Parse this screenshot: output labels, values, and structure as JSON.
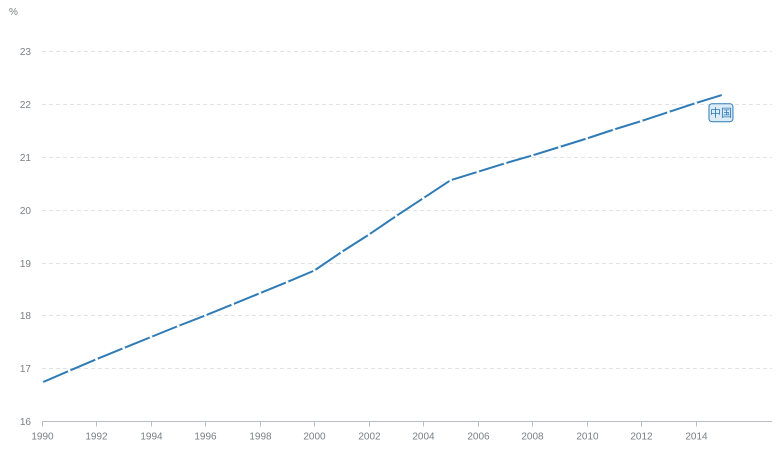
{
  "chart_data": {
    "type": "line",
    "unit_label": "%",
    "x": [
      1990,
      1991,
      1992,
      1993,
      1994,
      1995,
      1996,
      1997,
      1998,
      1999,
      2000,
      2001,
      2002,
      2003,
      2004,
      2005,
      2006,
      2007,
      2008,
      2009,
      2010,
      2011,
      2012,
      2013,
      2014,
      2015
    ],
    "xticks": [
      "1990",
      "1992",
      "1994",
      "1996",
      "1998",
      "2000",
      "2002",
      "2004",
      "2006",
      "2008",
      "2010",
      "2012",
      "2014"
    ],
    "yticks": [
      "16",
      "17",
      "18",
      "19",
      "20",
      "21",
      "22",
      "23"
    ],
    "xlim": [
      1990,
      2016.8
    ],
    "ylim": [
      16,
      23.5
    ],
    "grid": true,
    "series": [
      {
        "name": "中国",
        "color": "#2f7bb6",
        "values": [
          16.73,
          16.95,
          17.17,
          17.38,
          17.59,
          17.8,
          18.0,
          18.21,
          18.42,
          18.63,
          18.85,
          19.2,
          19.53,
          19.88,
          20.22,
          20.56,
          20.72,
          20.88,
          21.03,
          21.19,
          21.35,
          21.52,
          21.68,
          21.85,
          22.02,
          22.18
        ]
      }
    ]
  }
}
